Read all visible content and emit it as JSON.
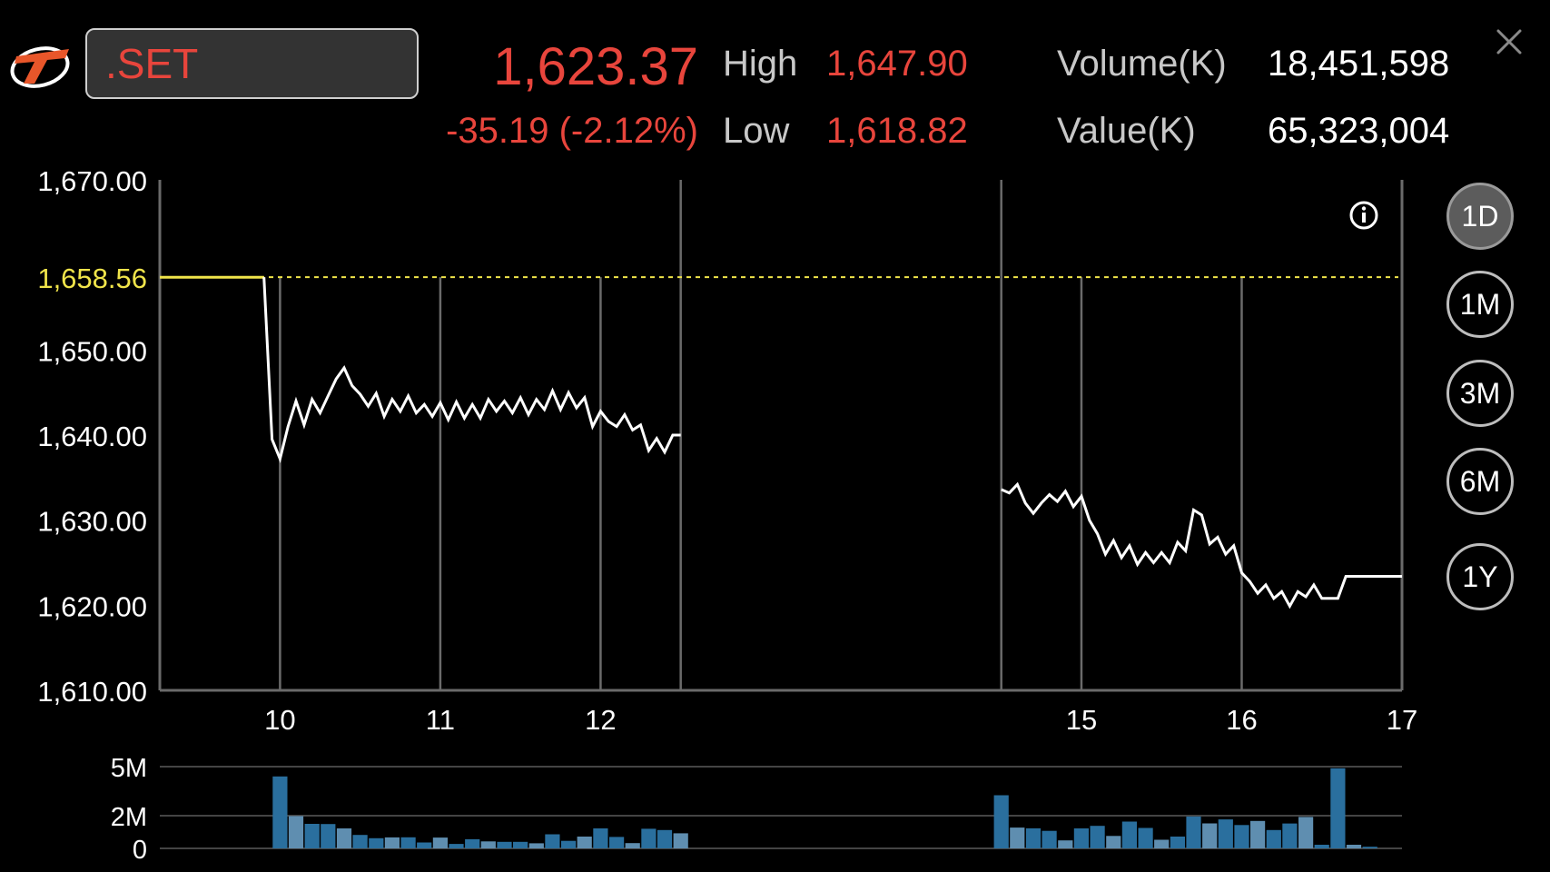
{
  "header": {
    "symbol": ".SET",
    "last_price": "1,623.37",
    "change": "-35.19 (-2.12%)",
    "high_label": "High",
    "high_value": "1,647.90",
    "low_label": "Low",
    "low_value": "1,618.82",
    "volume_label": "Volume(K)",
    "volume_value": "18,451,598",
    "value_label": "Value(K)",
    "value_value": "65,323,004"
  },
  "colors": {
    "down": "#e8453c",
    "reference": "#f0e44a",
    "line": "#ffffff",
    "grid": "#6a6a6a",
    "volume_bar": "#2a6f9e",
    "volume_bar_light": "#5f8eb0"
  },
  "icons": {
    "logo": "brand-logo-icon",
    "close": "close-icon",
    "info": "info-icon"
  },
  "timeframes": [
    {
      "label": "1D",
      "active": true
    },
    {
      "label": "1M",
      "active": false
    },
    {
      "label": "3M",
      "active": false
    },
    {
      "label": "6M",
      "active": false
    },
    {
      "label": "1Y",
      "active": false
    }
  ],
  "chart_data": [
    {
      "type": "line",
      "ylim": [
        1610,
        1670
      ],
      "y_ticks": [
        "1,610.00",
        "1,620.00",
        "1,630.00",
        "1,640.00",
        "1,650.00",
        "1,670.00"
      ],
      "y_tick_values": [
        1610,
        1620,
        1630,
        1640,
        1650,
        1670
      ],
      "reference_label": "1,658.56",
      "reference_value": 1658.56,
      "x_range": [
        9.25,
        17
      ],
      "x_ticks": [
        {
          "label": "10",
          "x": 10
        },
        {
          "label": "11",
          "x": 11
        },
        {
          "label": "12",
          "x": 12
        },
        {
          "label": "15",
          "x": 15
        },
        {
          "label": "16",
          "x": 16
        },
        {
          "label": "17",
          "x": 17
        }
      ],
      "session_breaks": [
        12.5,
        14.5
      ],
      "morning_session": [
        [
          9.25,
          1658.56
        ],
        [
          9.9,
          1658.56
        ],
        [
          9.95,
          1639.5
        ],
        [
          10.0,
          1637.2
        ],
        [
          10.05,
          1641.0
        ],
        [
          10.1,
          1644.0
        ],
        [
          10.15,
          1641.2
        ],
        [
          10.2,
          1644.2
        ],
        [
          10.25,
          1642.6
        ],
        [
          10.3,
          1644.6
        ],
        [
          10.35,
          1646.6
        ],
        [
          10.4,
          1647.9
        ],
        [
          10.45,
          1645.8
        ],
        [
          10.5,
          1644.8
        ],
        [
          10.55,
          1643.4
        ],
        [
          10.6,
          1644.9
        ],
        [
          10.65,
          1642.2
        ],
        [
          10.7,
          1644.2
        ],
        [
          10.75,
          1642.8
        ],
        [
          10.8,
          1644.6
        ],
        [
          10.85,
          1642.6
        ],
        [
          10.9,
          1643.6
        ],
        [
          10.95,
          1642.2
        ],
        [
          11.0,
          1643.8
        ],
        [
          11.05,
          1641.8
        ],
        [
          11.1,
          1643.9
        ],
        [
          11.15,
          1642.0
        ],
        [
          11.2,
          1643.6
        ],
        [
          11.25,
          1642.0
        ],
        [
          11.3,
          1644.2
        ],
        [
          11.35,
          1642.8
        ],
        [
          11.4,
          1644.0
        ],
        [
          11.45,
          1642.6
        ],
        [
          11.5,
          1644.4
        ],
        [
          11.55,
          1642.4
        ],
        [
          11.6,
          1644.2
        ],
        [
          11.65,
          1643.0
        ],
        [
          11.7,
          1645.2
        ],
        [
          11.75,
          1643.0
        ],
        [
          11.8,
          1645.0
        ],
        [
          11.85,
          1643.2
        ],
        [
          11.9,
          1644.4
        ],
        [
          11.95,
          1641.0
        ],
        [
          12.0,
          1642.8
        ],
        [
          12.05,
          1641.6
        ],
        [
          12.1,
          1641.0
        ],
        [
          12.15,
          1642.4
        ],
        [
          12.2,
          1640.6
        ],
        [
          12.25,
          1641.2
        ],
        [
          12.3,
          1638.2
        ],
        [
          12.35,
          1639.6
        ],
        [
          12.4,
          1638.0
        ],
        [
          12.45,
          1640.0
        ],
        [
          12.5,
          1640.0
        ]
      ],
      "afternoon_session": [
        [
          14.5,
          1633.6
        ],
        [
          14.55,
          1633.2
        ],
        [
          14.6,
          1634.2
        ],
        [
          14.65,
          1632.0
        ],
        [
          14.7,
          1630.8
        ],
        [
          14.75,
          1632.0
        ],
        [
          14.8,
          1633.0
        ],
        [
          14.85,
          1632.2
        ],
        [
          14.9,
          1633.4
        ],
        [
          14.95,
          1631.6
        ],
        [
          15.0,
          1632.8
        ],
        [
          15.05,
          1630.0
        ],
        [
          15.1,
          1628.4
        ],
        [
          15.15,
          1626.0
        ],
        [
          15.2,
          1627.6
        ],
        [
          15.25,
          1625.6
        ],
        [
          15.3,
          1627.0
        ],
        [
          15.35,
          1624.8
        ],
        [
          15.4,
          1626.2
        ],
        [
          15.45,
          1625.0
        ],
        [
          15.5,
          1626.2
        ],
        [
          15.55,
          1625.0
        ],
        [
          15.6,
          1627.4
        ],
        [
          15.65,
          1626.4
        ],
        [
          15.7,
          1631.2
        ],
        [
          15.75,
          1630.6
        ],
        [
          15.8,
          1627.2
        ],
        [
          15.85,
          1628.0
        ],
        [
          15.9,
          1626.0
        ],
        [
          15.95,
          1627.0
        ],
        [
          16.0,
          1623.8
        ],
        [
          16.05,
          1622.8
        ],
        [
          16.1,
          1621.4
        ],
        [
          16.15,
          1622.4
        ],
        [
          16.2,
          1620.8
        ],
        [
          16.25,
          1621.6
        ],
        [
          16.3,
          1619.9
        ],
        [
          16.35,
          1621.6
        ],
        [
          16.4,
          1621.0
        ],
        [
          16.45,
          1622.4
        ],
        [
          16.5,
          1620.8
        ],
        [
          16.55,
          1620.8
        ],
        [
          16.6,
          1620.8
        ],
        [
          16.65,
          1623.4
        ],
        [
          17.0,
          1623.4
        ]
      ]
    },
    {
      "type": "bar",
      "ylim": [
        0,
        5
      ],
      "y_ticks": [
        "0",
        "2M",
        "5M"
      ],
      "y_tick_values": [
        0,
        2,
        5
      ],
      "unit": "M",
      "morning": {
        "x_start": 10.0,
        "x_step": 0.1,
        "values": [
          4.4,
          1.98,
          1.5,
          1.49,
          1.22,
          0.82,
          0.62,
          0.67,
          0.68,
          0.36,
          0.66,
          0.27,
          0.56,
          0.43,
          0.4,
          0.4,
          0.31,
          0.86,
          0.46,
          0.72,
          1.22,
          0.7,
          0.32,
          1.2,
          1.12,
          0.92
        ]
      },
      "afternoon": {
        "x_start": 14.5,
        "x_step": 0.1,
        "values": [
          3.25,
          1.27,
          1.23,
          1.07,
          0.49,
          1.22,
          1.38,
          0.76,
          1.64,
          1.25,
          0.53,
          0.72,
          1.95,
          1.53,
          1.77,
          1.43,
          1.68,
          1.12,
          1.52,
          1.92,
          0.22,
          4.9,
          0.22,
          0.1
        ]
      }
    }
  ]
}
